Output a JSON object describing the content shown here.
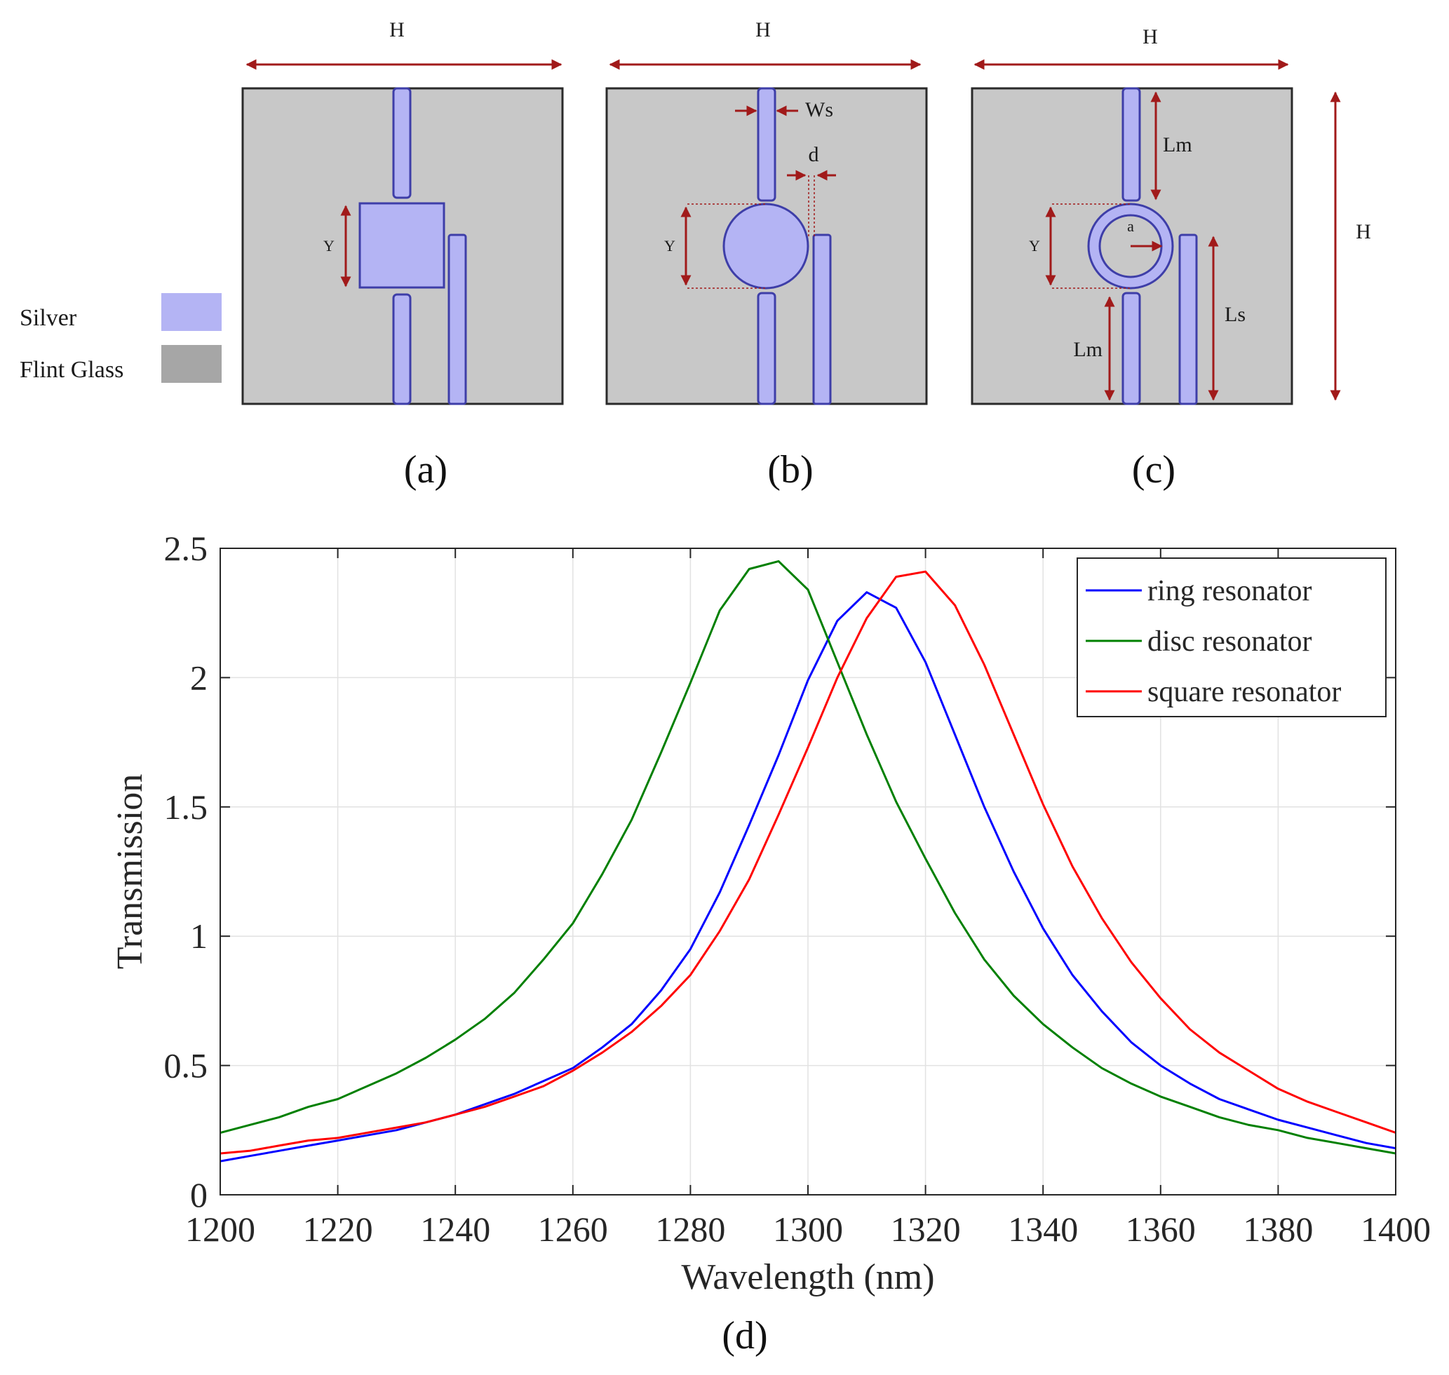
{
  "diagrams": {
    "panel_a": {
      "label": "(a)",
      "width_label": "H",
      "y_label": "Y"
    },
    "panel_b": {
      "label": "(b)",
      "width_label": "H",
      "y_label": "Y",
      "ws_label": "Ws",
      "d_label": "d"
    },
    "panel_c": {
      "label": "(c)",
      "width_label": "H",
      "height_label": "H",
      "y_label": "Y",
      "lm_top_label": "Lm",
      "lm_bottom_label": "Lm",
      "ls_label": "Ls",
      "a_label": "a"
    }
  },
  "material_key": {
    "silver_label": "Silver",
    "glass_label": "Flint Glass",
    "silver_color": "#b4b4f4",
    "glass_color": "#a6a6a6"
  },
  "colors": {
    "substrate": "#c8c8c8",
    "silver": "#b4b4f4",
    "silver_edge": "#3e3ea8",
    "arrow": "#a11a1a"
  },
  "chart_data": {
    "type": "line",
    "panel_label": "(d)",
    "xlabel": "Wavelength (nm)",
    "ylabel": "Transmission",
    "xlim": [
      1200,
      1400
    ],
    "ylim": [
      0,
      2.5
    ],
    "xticks": [
      1200,
      1220,
      1240,
      1260,
      1280,
      1300,
      1320,
      1340,
      1360,
      1380,
      1400
    ],
    "yticks": [
      0,
      0.5,
      1,
      1.5,
      2,
      2.5
    ],
    "ytick_labels": [
      "0",
      "0.5",
      "1",
      "1.5",
      "2",
      "2.5"
    ],
    "grid": true,
    "legend_position": "top-right",
    "x": [
      1200,
      1205,
      1210,
      1215,
      1220,
      1225,
      1230,
      1235,
      1240,
      1245,
      1250,
      1255,
      1260,
      1265,
      1270,
      1275,
      1280,
      1285,
      1290,
      1295,
      1300,
      1305,
      1310,
      1315,
      1320,
      1325,
      1330,
      1335,
      1340,
      1345,
      1350,
      1355,
      1360,
      1365,
      1370,
      1375,
      1380,
      1385,
      1390,
      1395,
      1400
    ],
    "series": [
      {
        "name": "ring resonator",
        "color": "#0000ff",
        "values": [
          0.13,
          0.15,
          0.17,
          0.19,
          0.21,
          0.23,
          0.25,
          0.28,
          0.31,
          0.35,
          0.39,
          0.44,
          0.49,
          0.57,
          0.66,
          0.79,
          0.95,
          1.17,
          1.43,
          1.7,
          1.99,
          2.22,
          2.33,
          2.27,
          2.06,
          1.78,
          1.5,
          1.25,
          1.03,
          0.85,
          0.71,
          0.59,
          0.5,
          0.43,
          0.37,
          0.33,
          0.29,
          0.26,
          0.23,
          0.2,
          0.18
        ]
      },
      {
        "name": "disc resonator",
        "color": "#008000",
        "values": [
          0.24,
          0.27,
          0.3,
          0.34,
          0.37,
          0.42,
          0.47,
          0.53,
          0.6,
          0.68,
          0.78,
          0.91,
          1.05,
          1.24,
          1.45,
          1.71,
          1.98,
          2.26,
          2.42,
          2.45,
          2.34,
          2.06,
          1.78,
          1.52,
          1.3,
          1.09,
          0.91,
          0.77,
          0.66,
          0.57,
          0.49,
          0.43,
          0.38,
          0.34,
          0.3,
          0.27,
          0.25,
          0.22,
          0.2,
          0.18,
          0.16
        ]
      },
      {
        "name": "square resonator",
        "color": "#ff0000",
        "values": [
          0.16,
          0.17,
          0.19,
          0.21,
          0.22,
          0.24,
          0.26,
          0.28,
          0.31,
          0.34,
          0.38,
          0.42,
          0.48,
          0.55,
          0.63,
          0.73,
          0.85,
          1.02,
          1.22,
          1.47,
          1.73,
          2.0,
          2.23,
          2.39,
          2.41,
          2.28,
          2.05,
          1.78,
          1.51,
          1.27,
          1.07,
          0.9,
          0.76,
          0.64,
          0.55,
          0.48,
          0.41,
          0.36,
          0.32,
          0.28,
          0.24
        ]
      }
    ]
  }
}
